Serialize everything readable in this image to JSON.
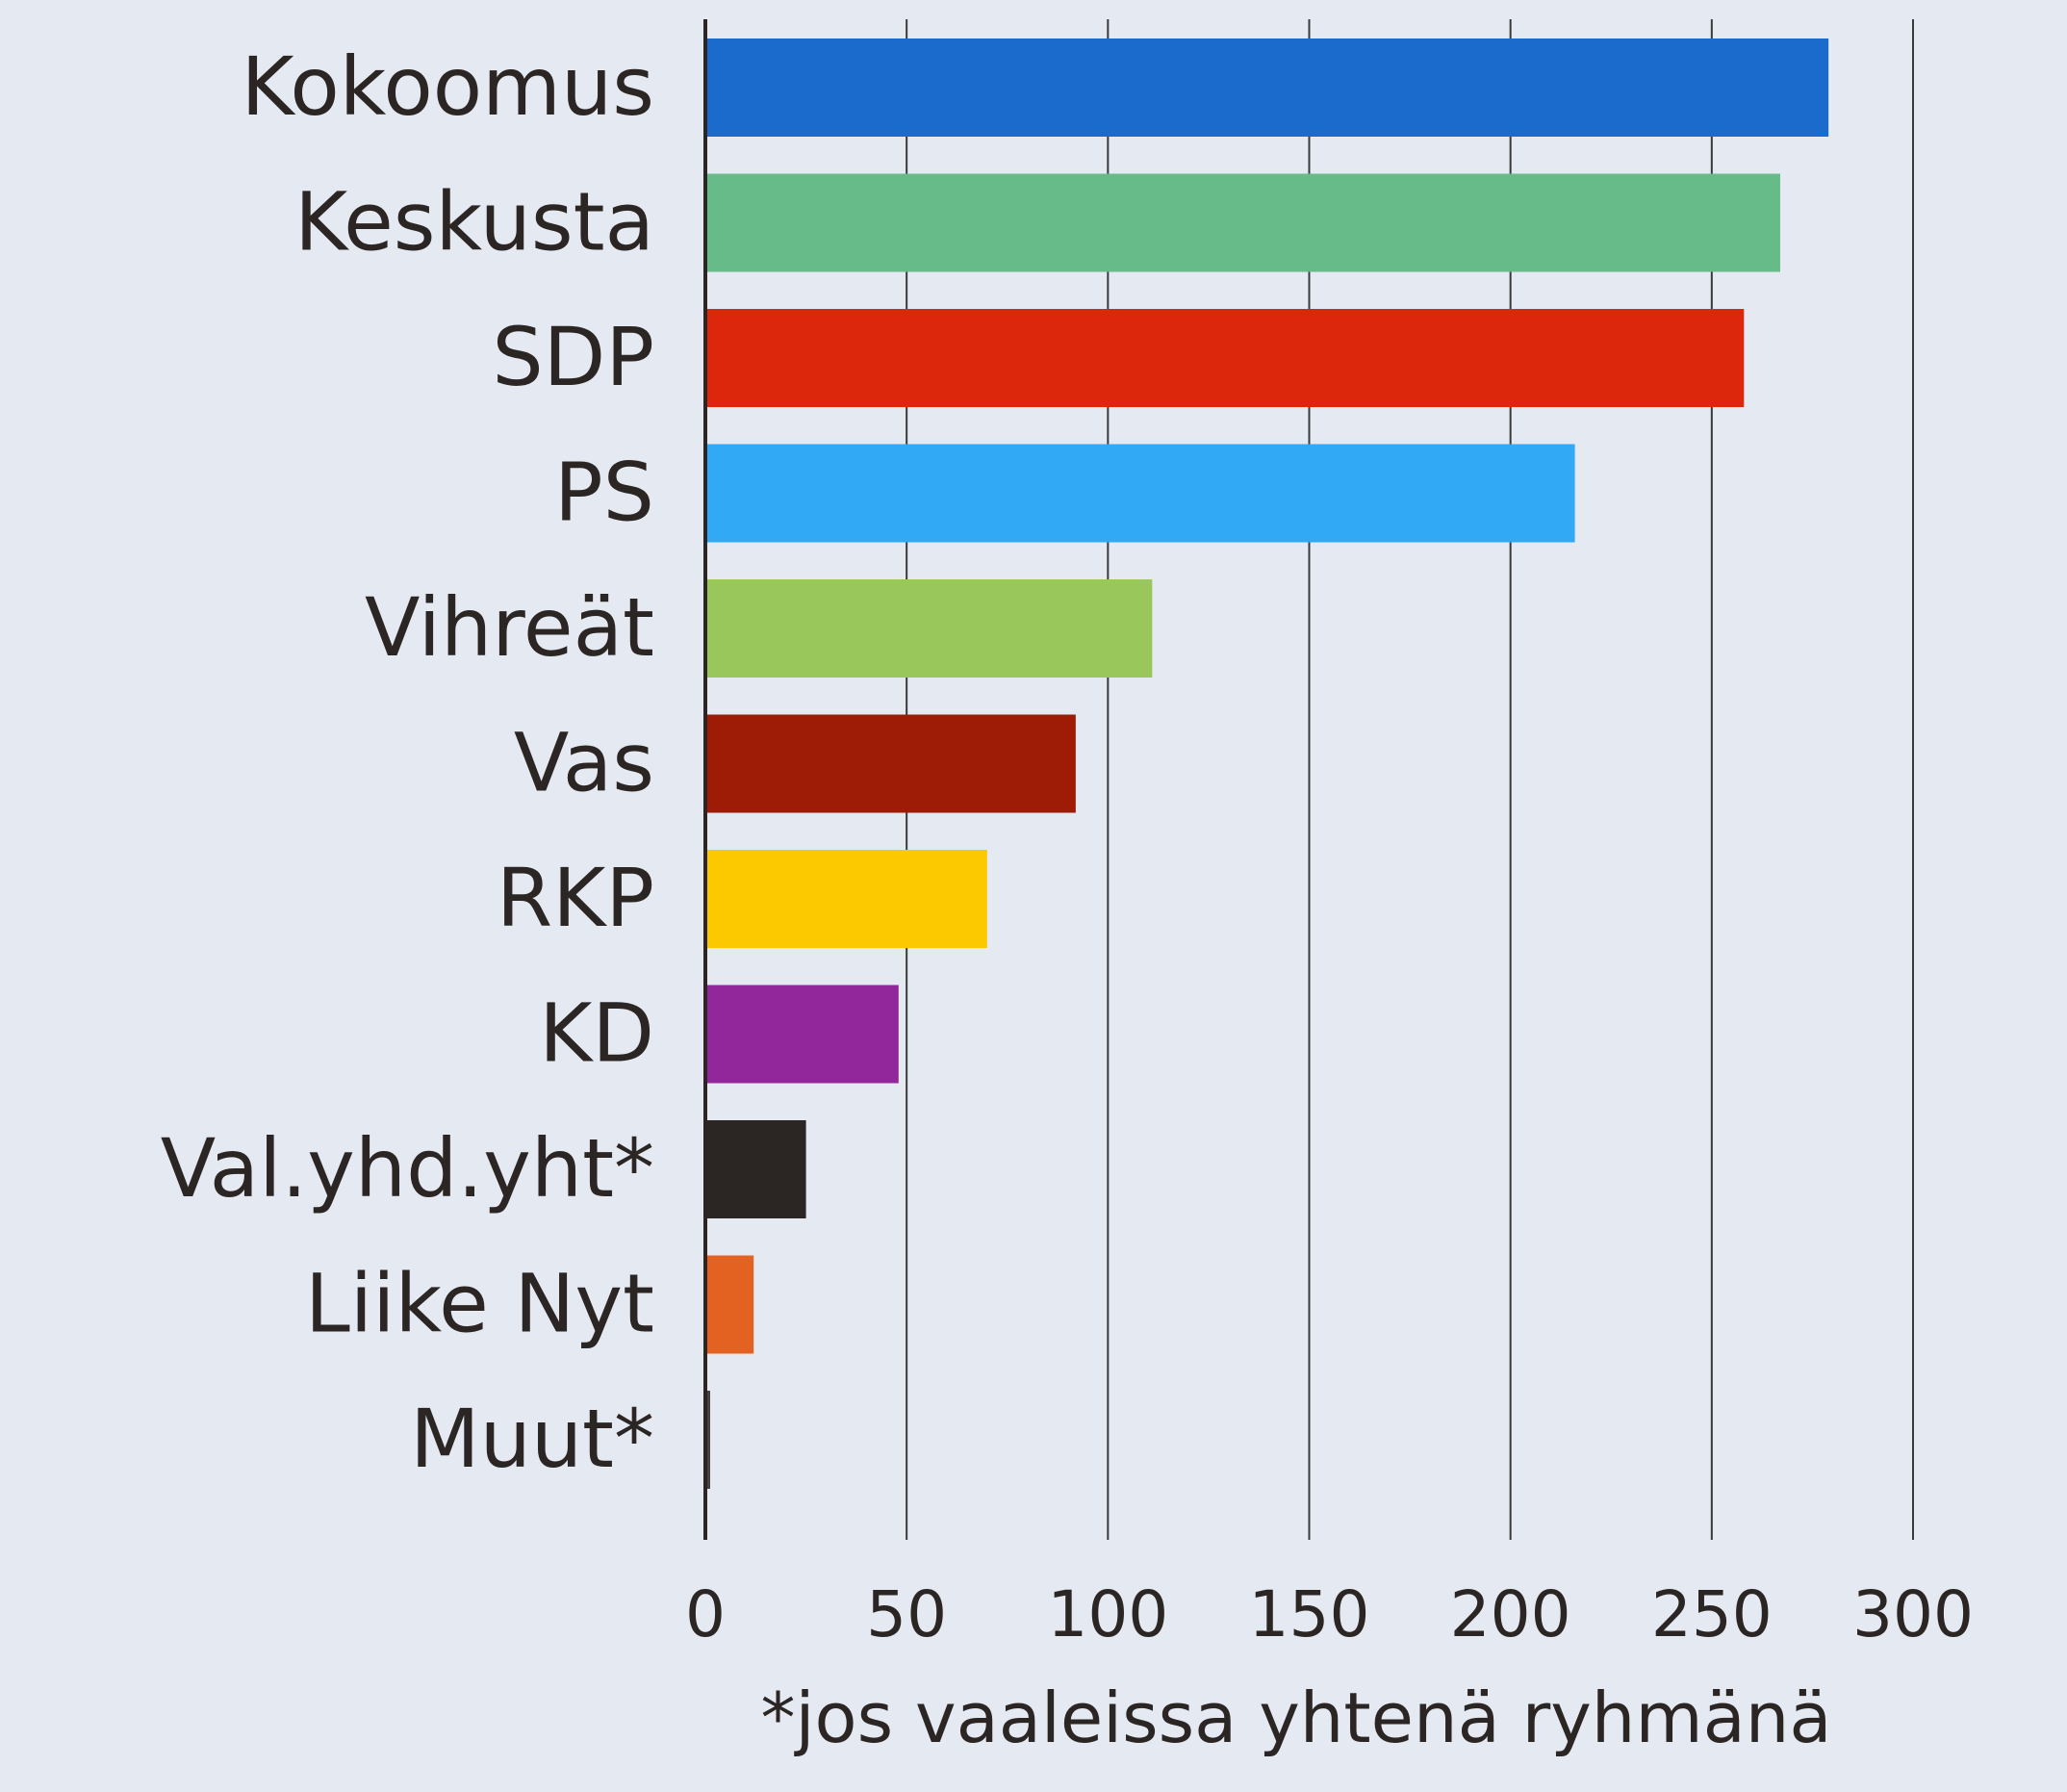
{
  "chart_data": {
    "type": "bar",
    "orientation": "horizontal",
    "categories": [
      "Kokoomus",
      "Keskusta",
      "SDP",
      "PS",
      "Vihreät",
      "Vas",
      "RKP",
      "KD",
      "Val.yhd.yht*",
      "Liike Nyt",
      "Muut*"
    ],
    "values": [
      279,
      267,
      258,
      216,
      111,
      92,
      70,
      48,
      25,
      12,
      1
    ],
    "colors": [
      "#1a6bcb",
      "#66bb89",
      "#dc270d",
      "#31a9f5",
      "#9ac75b",
      "#9e1c05",
      "#fcc900",
      "#92279b",
      "#2b2623",
      "#e36222",
      "#4a4040"
    ],
    "xlim": [
      0,
      300
    ],
    "xticks": [
      "0",
      "50",
      "100",
      "150",
      "200",
      "250",
      "300"
    ],
    "grid": true,
    "footnote": "*jos vaaleissa yhtenä ryhmänä"
  }
}
